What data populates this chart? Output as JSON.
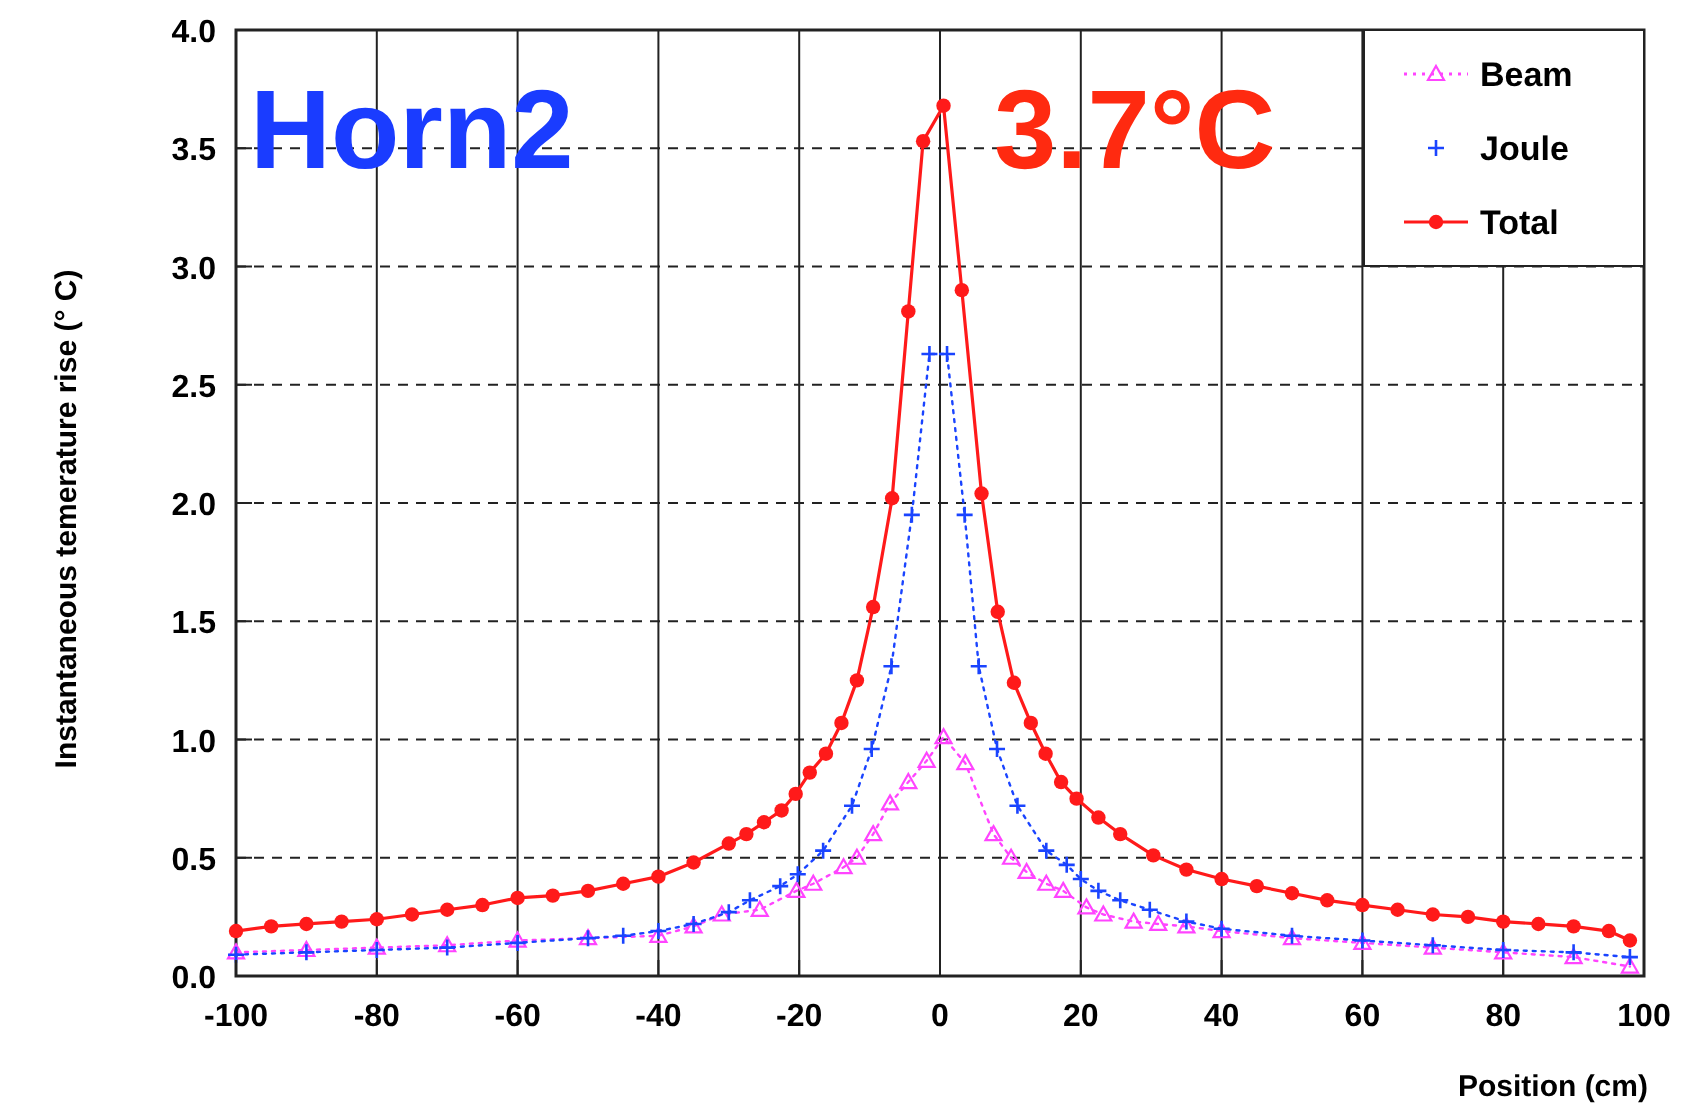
{
  "chart_data": {
    "type": "line",
    "xlabel": "Position (cm)",
    "ylabel": "Instantaneous temerature rise (° C)",
    "annotations": [
      "Horn2",
      "3.7°C"
    ],
    "xlim": [
      -100,
      100
    ],
    "xticks": [
      -100,
      -80,
      -60,
      -40,
      -20,
      0,
      20,
      40,
      60,
      80,
      100
    ],
    "ylim": [
      0,
      4
    ],
    "yticks": [
      {
        "value": 0,
        "label": "0.0"
      },
      {
        "value": 0.5,
        "label": "0.5"
      },
      {
        "value": 1,
        "label": "1.0"
      },
      {
        "value": 1.5,
        "label": "1.5"
      },
      {
        "value": 2,
        "label": "2.0"
      },
      {
        "value": 2.5,
        "label": "2.5"
      },
      {
        "value": 3,
        "label": "3.0"
      },
      {
        "value": 3.5,
        "label": "3.5"
      },
      {
        "value": 4,
        "label": "4.0"
      }
    ],
    "grid": true,
    "legend": "top right",
    "series": [
      {
        "name": "Beam",
        "color": "#ff44ff",
        "marker": "triangle",
        "line_style": "dotted",
        "x": [
          -100,
          -90,
          -80,
          -70,
          -60,
          -50,
          -40,
          -35,
          -31,
          -25.6,
          -20.4,
          -18,
          -13.7,
          -11.8,
          -9.5,
          -7.1,
          -4.5,
          -1.9,
          0.5,
          3.6,
          7.6,
          10.1,
          12.3,
          15.1,
          17.5,
          20.8,
          23.2,
          27.5,
          31,
          35,
          40,
          50,
          60,
          70,
          80,
          90,
          98
        ],
        "values": [
          0.1,
          0.11,
          0.12,
          0.13,
          0.15,
          0.16,
          0.17,
          0.21,
          0.26,
          0.28,
          0.36,
          0.39,
          0.46,
          0.5,
          0.6,
          0.73,
          0.82,
          0.91,
          1.01,
          0.9,
          0.6,
          0.5,
          0.44,
          0.39,
          0.36,
          0.29,
          0.26,
          0.23,
          0.22,
          0.21,
          0.19,
          0.16,
          0.14,
          0.12,
          0.1,
          0.08,
          0.04
        ]
      },
      {
        "name": "Joule",
        "color": "#1a44ff",
        "marker": "cross",
        "line_style": "dotted",
        "x": [
          -100,
          -90,
          -80,
          -70,
          -60,
          -50,
          -45,
          -40,
          -35,
          -30,
          -27,
          -22.7,
          -20.2,
          -16.6,
          -12.5,
          -9.7,
          -6.9,
          -4,
          -1.5,
          1,
          3.5,
          5.5,
          8.1,
          11,
          15.1,
          18,
          20,
          22.5,
          25.6,
          29.8,
          35,
          40,
          50,
          60,
          70,
          80,
          90,
          98
        ],
        "values": [
          0.09,
          0.1,
          0.11,
          0.12,
          0.14,
          0.16,
          0.17,
          0.19,
          0.22,
          0.27,
          0.32,
          0.38,
          0.43,
          0.53,
          0.72,
          0.96,
          1.31,
          1.95,
          2.63,
          2.63,
          1.95,
          1.31,
          0.96,
          0.72,
          0.53,
          0.47,
          0.41,
          0.36,
          0.32,
          0.28,
          0.23,
          0.2,
          0.17,
          0.15,
          0.13,
          0.11,
          0.1,
          0.08
        ]
      },
      {
        "name": "Total",
        "color": "#ff1a1a",
        "marker": "circle",
        "line_style": "solid",
        "x": [
          -100,
          -95,
          -90,
          -85,
          -80,
          -75,
          -70,
          -65,
          -60,
          -55,
          -50,
          -45,
          -40,
          -35,
          -30,
          -27.5,
          -25,
          -22.5,
          -20.5,
          -18.5,
          -16.2,
          -14,
          -11.8,
          -9.5,
          -6.8,
          -4.5,
          -2.4,
          0.5,
          3.1,
          5.9,
          8.2,
          10.5,
          12.9,
          15,
          17.2,
          19.4,
          22.5,
          25.6,
          30.3,
          35,
          40,
          45,
          50,
          55,
          60,
          65,
          70,
          75,
          80,
          85,
          90,
          95,
          98
        ],
        "values": [
          0.19,
          0.21,
          0.22,
          0.23,
          0.24,
          0.26,
          0.28,
          0.3,
          0.33,
          0.34,
          0.36,
          0.39,
          0.42,
          0.48,
          0.56,
          0.6,
          0.65,
          0.7,
          0.77,
          0.86,
          0.94,
          1.07,
          1.25,
          1.56,
          2.02,
          2.81,
          3.53,
          3.68,
          2.9,
          2.04,
          1.54,
          1.24,
          1.07,
          0.94,
          0.82,
          0.75,
          0.67,
          0.6,
          0.51,
          0.45,
          0.41,
          0.38,
          0.35,
          0.32,
          0.3,
          0.28,
          0.26,
          0.25,
          0.23,
          0.22,
          0.21,
          0.19,
          0.15
        ]
      }
    ]
  }
}
